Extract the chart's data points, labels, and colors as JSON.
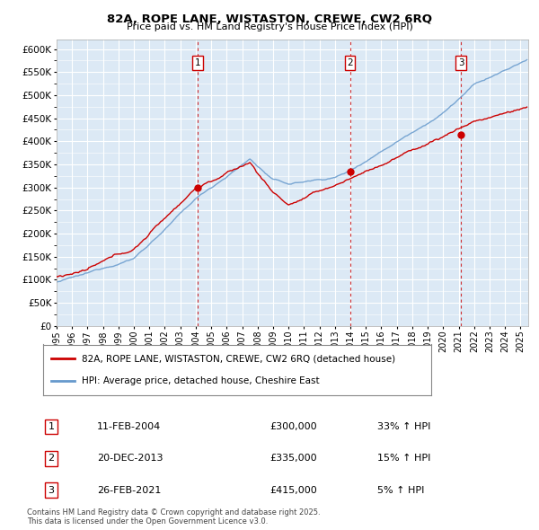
{
  "title": "82A, ROPE LANE, WISTASTON, CREWE, CW2 6RQ",
  "subtitle": "Price paid vs. HM Land Registry's House Price Index (HPI)",
  "red_label": "82A, ROPE LANE, WISTASTON, CREWE, CW2 6RQ (detached house)",
  "blue_label": "HPI: Average price, detached house, Cheshire East",
  "transactions": [
    {
      "num": 1,
      "date": "11-FEB-2004",
      "price": 300000,
      "pct": "33%",
      "direction": "↑",
      "x_year": 2004.11
    },
    {
      "num": 2,
      "date": "20-DEC-2013",
      "price": 335000,
      "pct": "15%",
      "direction": "↑",
      "x_year": 2013.97
    },
    {
      "num": 3,
      "date": "26-FEB-2021",
      "price": 415000,
      "pct": "5%",
      "direction": "↑",
      "x_year": 2021.15
    }
  ],
  "ylim": [
    0,
    620000
  ],
  "yticks": [
    0,
    50000,
    100000,
    150000,
    200000,
    250000,
    300000,
    350000,
    400000,
    450000,
    500000,
    550000,
    600000
  ],
  "xlim": [
    1995,
    2025.5
  ],
  "xticks": [
    1995,
    1996,
    1997,
    1998,
    1999,
    2000,
    2001,
    2002,
    2003,
    2004,
    2005,
    2006,
    2007,
    2008,
    2009,
    2010,
    2011,
    2012,
    2013,
    2014,
    2015,
    2016,
    2017,
    2018,
    2019,
    2020,
    2021,
    2022,
    2023,
    2024,
    2025
  ],
  "bg_color": "#dce9f5",
  "grid_color": "#ffffff",
  "red_color": "#cc0000",
  "blue_color": "#6699cc",
  "vline_color": "#cc0000",
  "footnote": "Contains HM Land Registry data © Crown copyright and database right 2025.\nThis data is licensed under the Open Government Licence v3.0."
}
